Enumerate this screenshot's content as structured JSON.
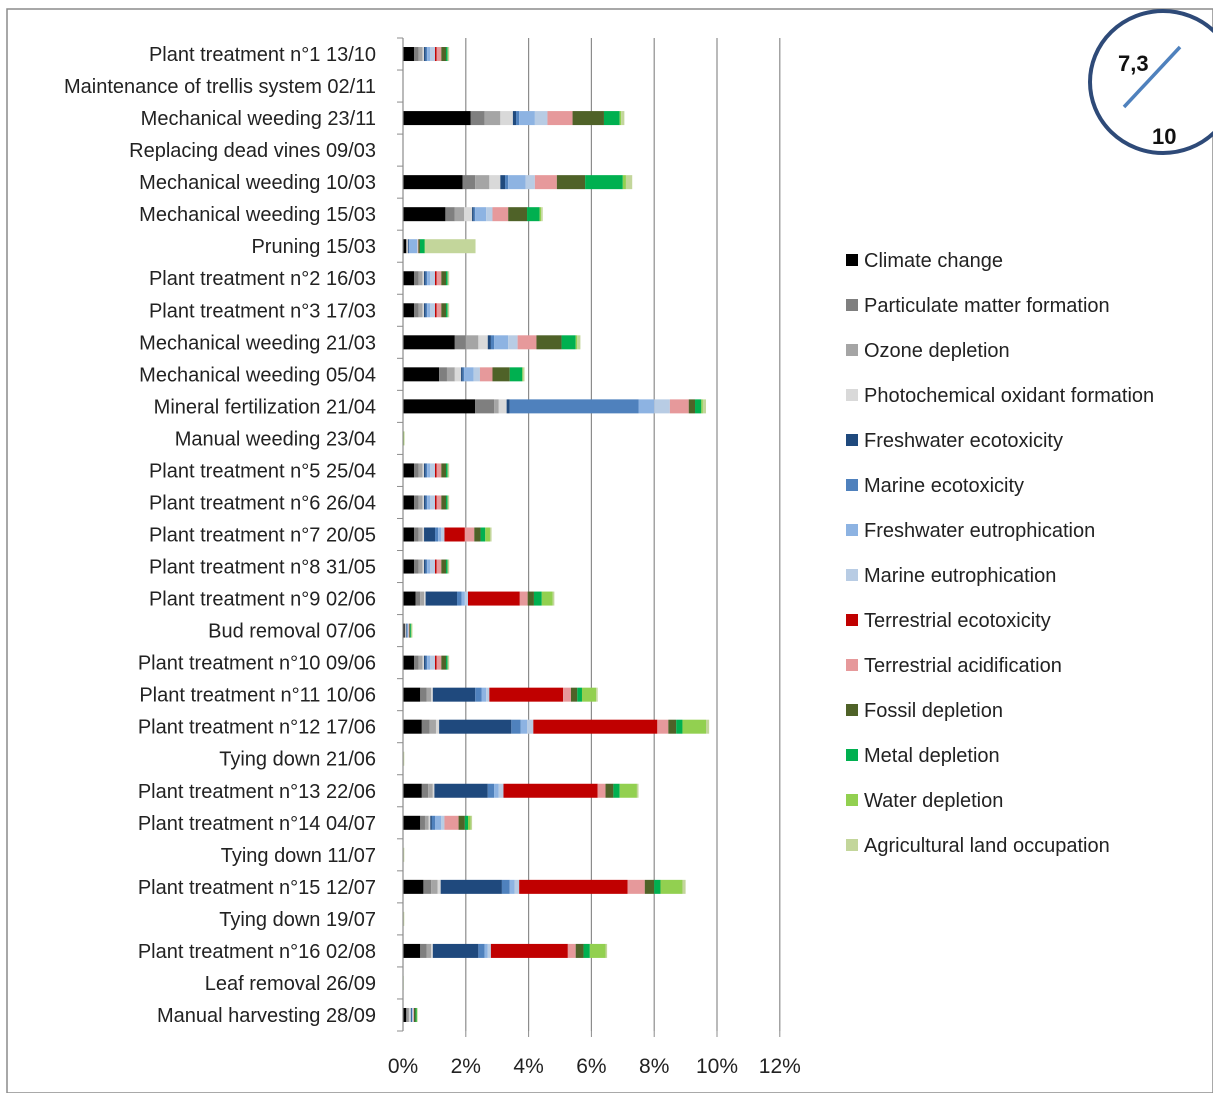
{
  "chart_data": {
    "type": "bar",
    "orientation": "horizontal",
    "stacked": true,
    "xlim": [
      0,
      12
    ],
    "x_ticks": [
      "0%",
      "2%",
      "4%",
      "6%",
      "8%",
      "10%",
      "12%"
    ],
    "grid": "vertical",
    "legend_position": "right",
    "categories": [
      "Plant treatment n°1 13/10",
      "Maintenance of trellis system 02/11",
      "Mechanical weeding 23/11",
      "Replacing dead vines 09/03",
      "Mechanical weeding 10/03",
      "Mechanical weeding 15/03",
      "Pruning 15/03",
      "Plant treatment n°2 16/03",
      "Plant treatment n°3 17/03",
      "Mechanical weeding 21/03",
      "Mechanical weeding 05/04",
      "Mineral fertilization 21/04",
      "Manual weeding 23/04",
      "Plant treatment n°5 25/04",
      "Plant treatment n°6 26/04",
      "Plant treatment n°7 20/05",
      "Plant treatment n°8 31/05",
      "Plant treatment n°9 02/06",
      "Bud removal 07/06",
      "Plant treatment n°10 09/06",
      "Plant treatment n°11 10/06",
      "Plant treatment n°12 17/06",
      "Tying down 21/06",
      "Plant treatment n°13 22/06",
      "Plant treatment n°14 04/07",
      "Tying down 11/07",
      "Plant treatment n°15 12/07",
      "Tying down 19/07",
      "Plant treatment n°16 02/08",
      "Leaf removal 26/09",
      "Manual harvesting 28/09"
    ],
    "series": [
      {
        "name": "Climate change",
        "color": "#000000",
        "values": [
          0.35,
          0,
          2.15,
          0,
          1.9,
          1.35,
          0.1,
          0.35,
          0.35,
          1.65,
          1.15,
          2.3,
          0,
          0.35,
          0.35,
          0.35,
          0.35,
          0.4,
          0.05,
          0.35,
          0.55,
          0.6,
          0,
          0.6,
          0.55,
          0,
          0.65,
          0,
          0.55,
          0,
          0.1
        ]
      },
      {
        "name": "Particulate matter formation",
        "color": "#7f7f7f",
        "values": [
          0.15,
          0,
          0.45,
          0,
          0.4,
          0.3,
          0.02,
          0.15,
          0.15,
          0.35,
          0.25,
          0.6,
          0,
          0.15,
          0.15,
          0.15,
          0.15,
          0.15,
          0.02,
          0.15,
          0.2,
          0.25,
          0,
          0.2,
          0.15,
          0,
          0.25,
          0,
          0.2,
          0,
          0.05
        ]
      },
      {
        "name": "Ozone depletion",
        "color": "#a5a5a5",
        "values": [
          0.12,
          0,
          0.5,
          0,
          0.45,
          0.3,
          0.02,
          0.12,
          0.12,
          0.4,
          0.25,
          0.15,
          0,
          0.12,
          0.12,
          0.12,
          0.12,
          0.12,
          0.02,
          0.12,
          0.15,
          0.2,
          0,
          0.15,
          0.12,
          0,
          0.2,
          0,
          0.15,
          0,
          0.05
        ]
      },
      {
        "name": "Photochemical oxidant formation",
        "color": "#d9d9d9",
        "values": [
          0.05,
          0,
          0.4,
          0,
          0.35,
          0.25,
          0.02,
          0.05,
          0.05,
          0.3,
          0.2,
          0.25,
          0,
          0.05,
          0.05,
          0.05,
          0.05,
          0.05,
          0.01,
          0.05,
          0.05,
          0.1,
          0,
          0.05,
          0.05,
          0,
          0.1,
          0,
          0.05,
          0,
          0.05
        ]
      },
      {
        "name": "Freshwater ecotoxicity",
        "color": "#1f497d",
        "values": [
          0.05,
          0,
          0.1,
          0,
          0.15,
          0.05,
          0.02,
          0.05,
          0.05,
          0.1,
          0.05,
          0.1,
          0,
          0.05,
          0.05,
          0.35,
          0.05,
          1.0,
          0.02,
          0.05,
          1.35,
          2.3,
          0,
          1.7,
          0.05,
          0,
          1.95,
          0,
          1.45,
          0,
          0.02
        ]
      },
      {
        "name": "Marine ecotoxicity",
        "color": "#4f81bd",
        "values": [
          0.05,
          0,
          0.1,
          0,
          0.1,
          0.05,
          0.02,
          0.05,
          0.05,
          0.1,
          0.05,
          4.1,
          0,
          0.05,
          0.05,
          0.1,
          0.05,
          0.15,
          0.02,
          0.05,
          0.2,
          0.3,
          0,
          0.2,
          0.1,
          0,
          0.25,
          0,
          0.2,
          0,
          0.02
        ]
      },
      {
        "name": "Freshwater eutrophication",
        "color": "#8db3e2",
        "values": [
          0.1,
          0,
          0.5,
          0,
          0.55,
          0.35,
          0.25,
          0.1,
          0.1,
          0.45,
          0.3,
          0.5,
          0,
          0.1,
          0.1,
          0.1,
          0.1,
          0.1,
          0.02,
          0.1,
          0.15,
          0.2,
          0,
          0.15,
          0.2,
          0,
          0.15,
          0,
          0.1,
          0,
          0.02
        ]
      },
      {
        "name": "Marine eutrophication",
        "color": "#b8cce4",
        "values": [
          0.15,
          0,
          0.4,
          0,
          0.3,
          0.2,
          0.02,
          0.15,
          0.15,
          0.3,
          0.2,
          0.5,
          0,
          0.15,
          0.15,
          0.1,
          0.15,
          0.1,
          0.02,
          0.15,
          0.1,
          0.2,
          0,
          0.15,
          0.1,
          0,
          0.15,
          0,
          0.1,
          0,
          0.02
        ]
      },
      {
        "name": "Terrestrial ecotoxicity",
        "color": "#c00000",
        "values": [
          0.05,
          0,
          0,
          0,
          0,
          0,
          0,
          0.05,
          0.05,
          0,
          0,
          0,
          0,
          0.05,
          0.05,
          0.65,
          0.05,
          1.65,
          0,
          0.05,
          2.35,
          3.95,
          0,
          3.0,
          0,
          0,
          3.45,
          0,
          2.45,
          0,
          0
        ]
      },
      {
        "name": "Terrestrial acidification",
        "color": "#e6999b",
        "values": [
          0.15,
          0,
          0.8,
          0,
          0.7,
          0.5,
          0.02,
          0.15,
          0.15,
          0.6,
          0.4,
          0.6,
          0,
          0.15,
          0.15,
          0.3,
          0.15,
          0.25,
          0.02,
          0.15,
          0.25,
          0.35,
          0,
          0.25,
          0.45,
          0,
          0.55,
          0,
          0.25,
          0,
          0.02
        ]
      },
      {
        "name": "Fossil depletion",
        "color": "#4f6228",
        "values": [
          0.15,
          0,
          1.0,
          0,
          0.9,
          0.6,
          0.05,
          0.15,
          0.15,
          0.8,
          0.55,
          0.2,
          0,
          0.15,
          0.15,
          0.2,
          0.15,
          0.2,
          0.03,
          0.15,
          0.2,
          0.25,
          0,
          0.25,
          0.2,
          0,
          0.3,
          0,
          0.25,
          0,
          0.05
        ]
      },
      {
        "name": "Metal depletion",
        "color": "#00b050",
        "values": [
          0.05,
          0,
          0.5,
          0,
          1.2,
          0.4,
          0.15,
          0.05,
          0.05,
          0.45,
          0.4,
          0.2,
          0,
          0.05,
          0.05,
          0.15,
          0.05,
          0.25,
          0.03,
          0.05,
          0.15,
          0.2,
          0,
          0.2,
          0.1,
          0,
          0.2,
          0,
          0.2,
          0,
          0.03
        ]
      },
      {
        "name": "Water depletion",
        "color": "#92d050",
        "values": [
          0,
          0,
          0.05,
          0,
          0.1,
          0.05,
          0.02,
          0,
          0,
          0.05,
          0.02,
          0.05,
          0.03,
          0,
          0,
          0.15,
          0,
          0.35,
          0.02,
          0,
          0.45,
          0.75,
          0.02,
          0.55,
          0.08,
          0.02,
          0.7,
          0.02,
          0.5,
          0.02,
          0.02
        ]
      },
      {
        "name": "Agricultural land occupation",
        "color": "#c3d69b",
        "values": [
          0.05,
          0,
          0.1,
          0,
          0.2,
          0.05,
          1.6,
          0.05,
          0.05,
          0.1,
          0.05,
          0.1,
          0.02,
          0.05,
          0.05,
          0.05,
          0.05,
          0.05,
          0.02,
          0.05,
          0.05,
          0.1,
          0.02,
          0.05,
          0.05,
          0.02,
          0.1,
          0.02,
          0.05,
          0,
          0.02
        ]
      }
    ]
  },
  "score": {
    "numerator": "7,3",
    "denominator": "10"
  }
}
